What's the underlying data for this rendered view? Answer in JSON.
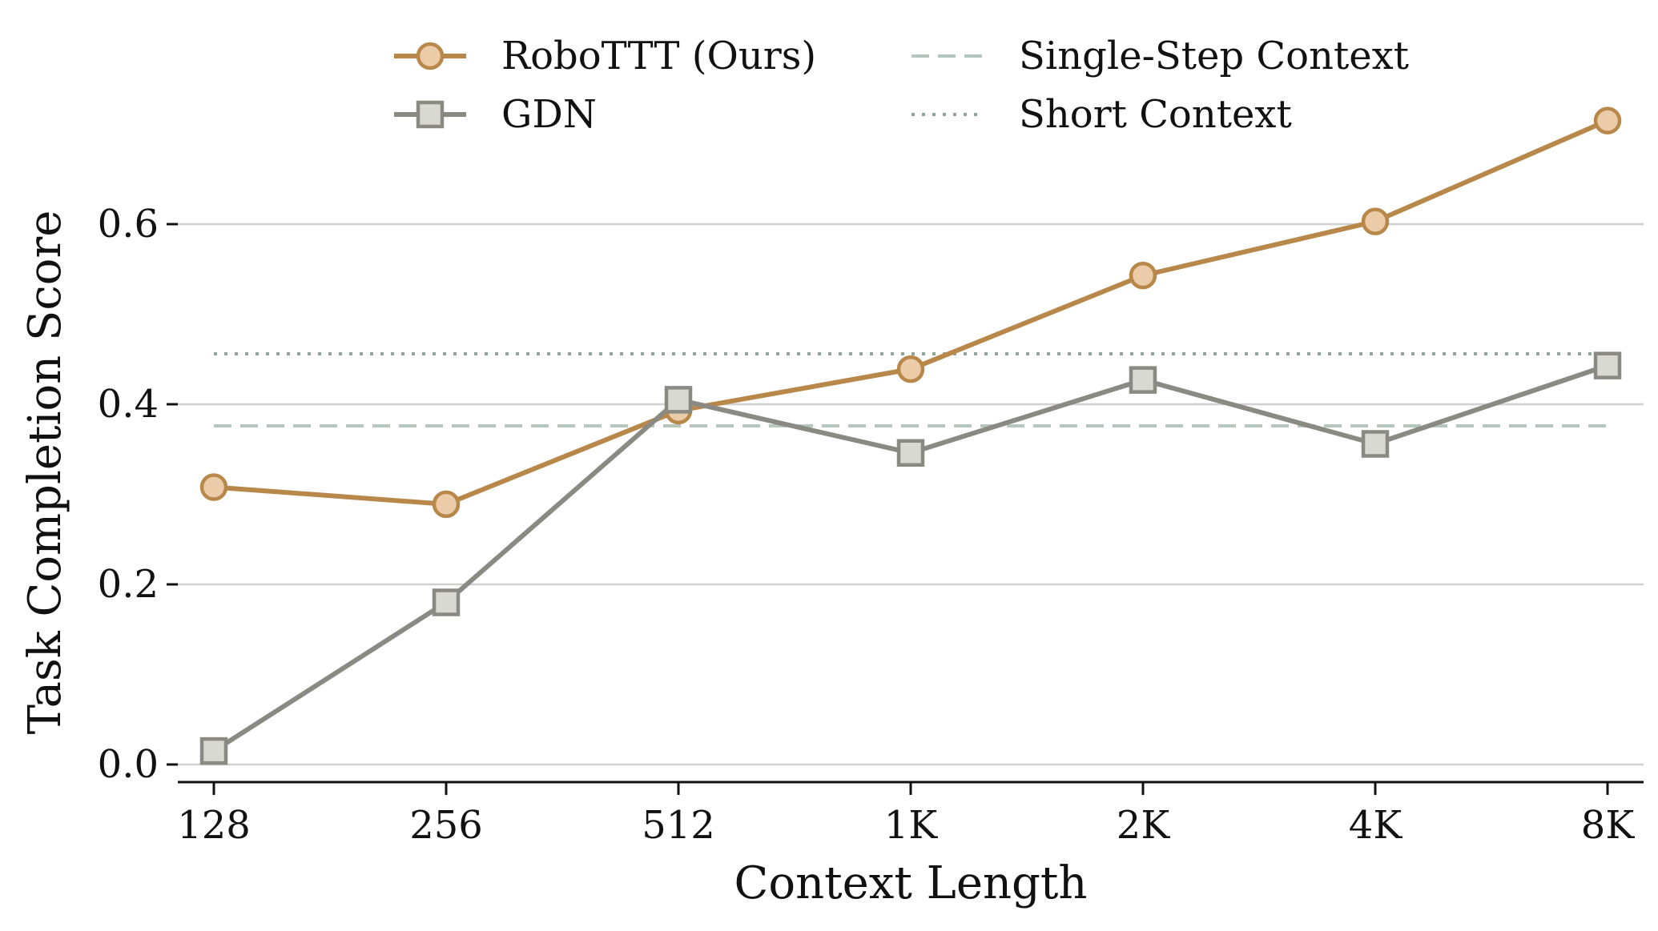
{
  "chart_data": {
    "type": "line",
    "xlabel": "Context Length",
    "ylabel": "Task Completion Score",
    "categories": [
      "128",
      "256",
      "512",
      "1K",
      "2K",
      "4K",
      "8K"
    ],
    "yticks": [
      0.0,
      0.2,
      0.4,
      0.6
    ],
    "ytick_labels": [
      "0.0",
      "0.2",
      "0.4",
      "0.6"
    ],
    "ylim": [
      -0.02,
      0.75
    ],
    "grid": "horizontal",
    "legend_position": "top",
    "series": [
      {
        "name": "RoboTTT (Ours)",
        "marker": "circle",
        "color": "#b8884a",
        "fill": "#eccba8",
        "values": [
          0.308,
          0.289,
          0.393,
          0.439,
          0.543,
          0.603,
          0.715
        ]
      },
      {
        "name": "GDN",
        "marker": "square",
        "color": "#8a8a83",
        "fill": "#d8dad2",
        "values": [
          0.015,
          0.18,
          0.405,
          0.346,
          0.427,
          0.356,
          0.443
        ]
      }
    ],
    "reference_lines": [
      {
        "name": "Single-Step Context",
        "value": 0.376,
        "style": "dashed",
        "color": "#b5c6bc"
      },
      {
        "name": "Short Context",
        "value": 0.456,
        "style": "dotted",
        "color": "#8ea598"
      }
    ]
  }
}
